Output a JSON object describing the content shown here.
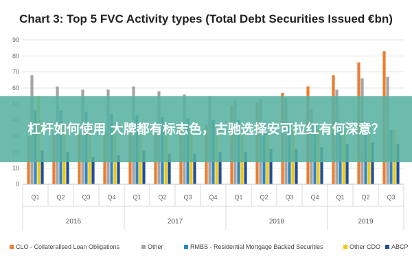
{
  "chart_data": {
    "type": "bar",
    "title": "Chart 3: Top 5 FVC Activity types (Total Debt Securities Issued €bn)",
    "xlabel": "",
    "ylabel": "",
    "ylim": [
      0,
      90
    ],
    "yticks": [
      0,
      10,
      20,
      30,
      40,
      50,
      60,
      70,
      80,
      90
    ],
    "grid": true,
    "legend_position": "bottom",
    "categories": [
      "Q1",
      "Q2",
      "Q3",
      "Q4",
      "Q1",
      "Q2",
      "Q3",
      "Q4",
      "Q1",
      "Q2",
      "Q3",
      "Q4",
      "Q1",
      "Q2",
      "Q3"
    ],
    "years": [
      {
        "label": "2016",
        "span": 4
      },
      {
        "label": "2017",
        "span": 4
      },
      {
        "label": "2018",
        "span": 4
      },
      {
        "label": "2019",
        "span": 3
      }
    ],
    "series": [
      {
        "name": "CLO - Collateralised Loan Obligations",
        "color": "#ED7D31",
        "values": [
          30,
          31,
          32,
          33,
          33,
          34,
          35,
          37,
          49,
          51,
          57,
          61,
          68,
          76,
          83
        ]
      },
      {
        "name": "Other",
        "color": "#A5A5A5",
        "values": [
          68,
          61,
          59,
          59,
          61,
          58,
          56,
          55,
          52,
          53,
          54,
          47,
          59,
          66,
          67
        ]
      },
      {
        "name": "RMBS - Residential Mortgage Backed Securities",
        "color": "#2E86C1",
        "values": [
          46,
          46,
          45,
          44,
          43,
          42,
          41,
          40,
          40,
          39,
          38,
          37,
          36,
          35,
          34
        ]
      },
      {
        "name": "Other CDO",
        "color": "#F2C811",
        "values": [
          55,
          38,
          36,
          35,
          34,
          34,
          33,
          33,
          33,
          33,
          34,
          34,
          34,
          34,
          34
        ]
      },
      {
        "name": "ABCP",
        "color": "#1F4E9A",
        "values": [
          21,
          20,
          17,
          18,
          21,
          19,
          19,
          20,
          20,
          22,
          22,
          23,
          25,
          26,
          25
        ]
      }
    ]
  },
  "overlay": {
    "text": "杠杆如何使用 大牌都有标志色，古驰选择安可拉红有何深意？"
  }
}
